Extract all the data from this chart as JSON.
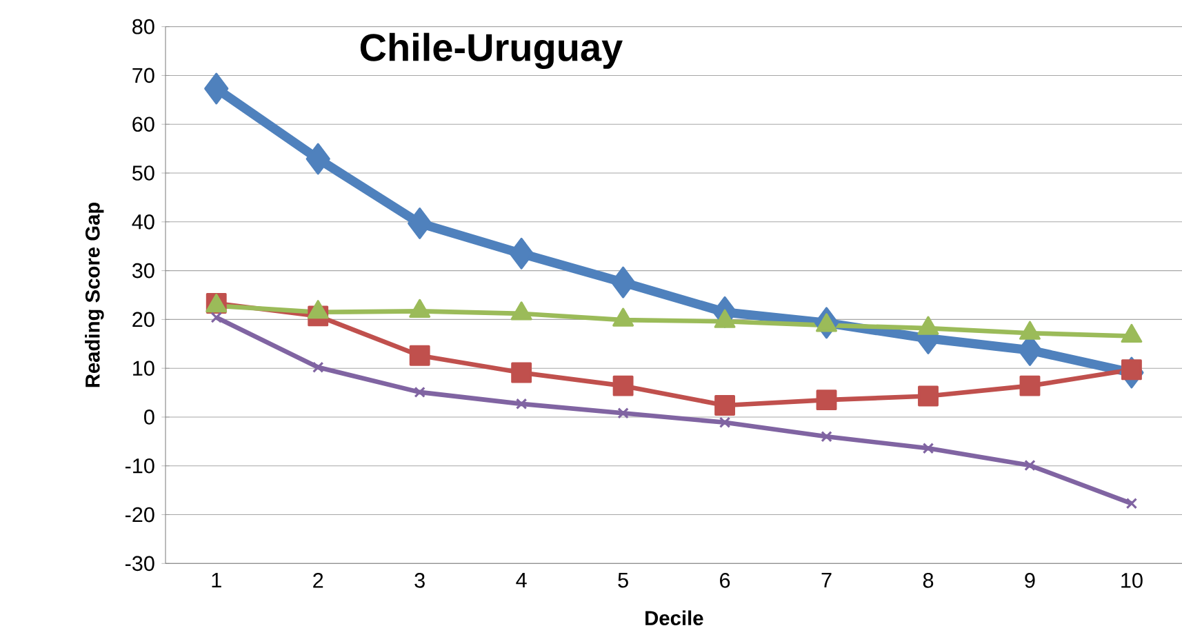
{
  "chart_data": {
    "type": "line",
    "title": "Chile-Uruguay",
    "xlabel": "Decile",
    "ylabel": "Reading Score Gap",
    "categories": [
      "1",
      "2",
      "3",
      "4",
      "5",
      "6",
      "7",
      "8",
      "9",
      "10"
    ],
    "series": [
      {
        "color": "#4f81bd",
        "marker": "diamond",
        "values": [
          67.3,
          52.9,
          39.7,
          33.5,
          27.6,
          21.5,
          19.3,
          16.1,
          13.7,
          9.1
        ]
      },
      {
        "color": "#c0504d",
        "marker": "square",
        "values": [
          23.3,
          20.7,
          12.6,
          9.1,
          6.4,
          2.4,
          3.5,
          4.3,
          6.4,
          9.7
        ]
      },
      {
        "color": "#9bbb59",
        "marker": "triangle",
        "values": [
          22.8,
          21.5,
          21.7,
          21.2,
          19.9,
          19.6,
          18.8,
          18.2,
          17.2,
          16.6
        ]
      },
      {
        "color": "#8064a2",
        "marker": "cross",
        "values": [
          20.4,
          10.2,
          5.1,
          2.7,
          0.8,
          -1.1,
          -4.0,
          -6.4,
          -9.9,
          -17.7
        ]
      }
    ],
    "ylim": [
      -30,
      80
    ],
    "yticks": [
      -30,
      -20,
      -10,
      0,
      10,
      20,
      30,
      40,
      50,
      60,
      70,
      80
    ],
    "grid": "y"
  }
}
